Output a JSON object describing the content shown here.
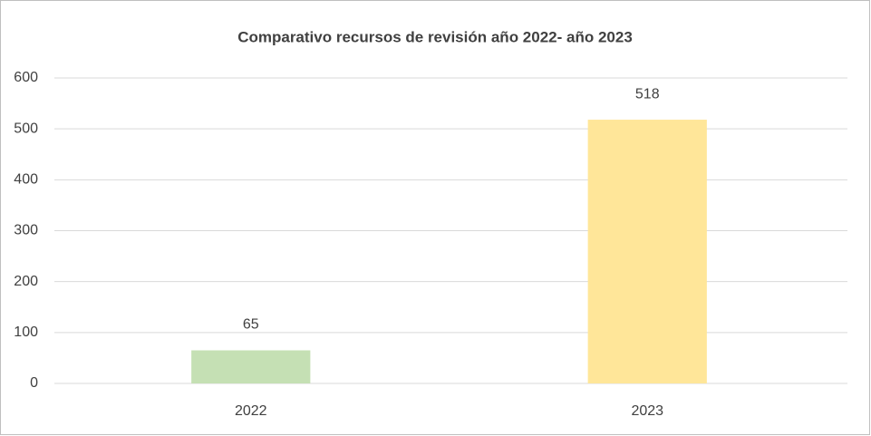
{
  "chart_data": {
    "type": "bar",
    "title": "Comparativo recursos de revisión año 2022- año 2023",
    "categories": [
      "2022",
      "2023"
    ],
    "values": [
      65,
      518
    ],
    "colors": [
      "#c5e0b4",
      "#ffe699"
    ],
    "ylim": [
      0,
      600
    ],
    "yticks": [
      0,
      100,
      200,
      300,
      400,
      500,
      600
    ],
    "grid": true
  }
}
